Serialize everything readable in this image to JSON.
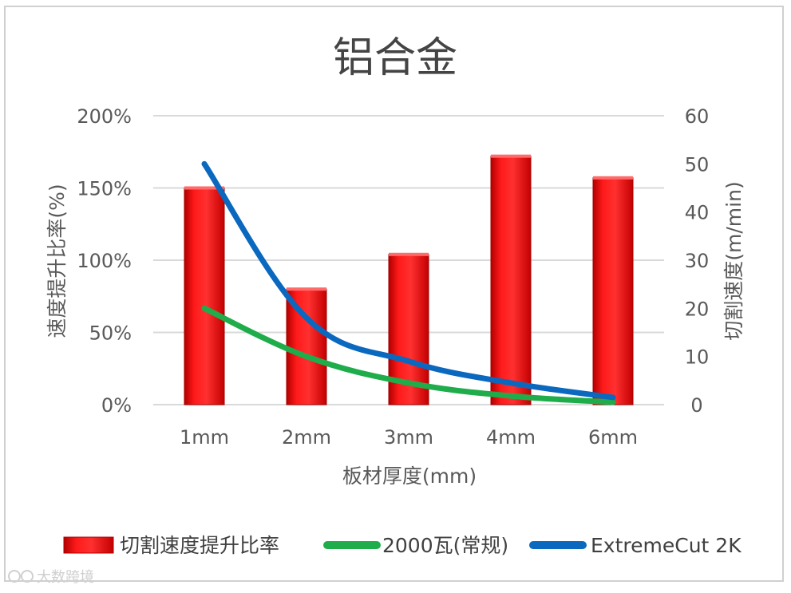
{
  "chart_data": {
    "type": "bar",
    "title": "铝合金",
    "xlabel": "板材厚度(mm)",
    "ylabel": "速度提升比率(%)",
    "y2label": "切割速度(m/min)",
    "categories": [
      "1mm",
      "2mm",
      "3mm",
      "4mm",
      "6mm"
    ],
    "ylim": [
      0,
      200
    ],
    "y_ticks": [
      "0%",
      "50%",
      "100%",
      "150%",
      "200%"
    ],
    "y2lim": [
      0,
      60
    ],
    "y2_ticks": [
      "0",
      "10",
      "20",
      "30",
      "40",
      "50",
      "60"
    ],
    "grid": true,
    "legend_position": "bottom",
    "series": [
      {
        "name": "切割速度提升比率",
        "type": "bar",
        "axis": "left",
        "unit": "%",
        "color": "#ff0000",
        "values": [
          150,
          80,
          104,
          172,
          157
        ]
      },
      {
        "name": "2000瓦(常规)",
        "type": "line",
        "axis": "right",
        "color": "#1fad4b",
        "values": [
          20,
          10,
          4.5,
          1.8,
          0.5
        ]
      },
      {
        "name": "ExtremeCut 2K",
        "type": "line",
        "axis": "right",
        "color": "#0b68bf",
        "values": [
          50,
          18,
          9,
          4.5,
          1.5
        ]
      }
    ]
  },
  "watermark": {
    "icon": "quote-logo-icon",
    "text": "大数跨境"
  }
}
